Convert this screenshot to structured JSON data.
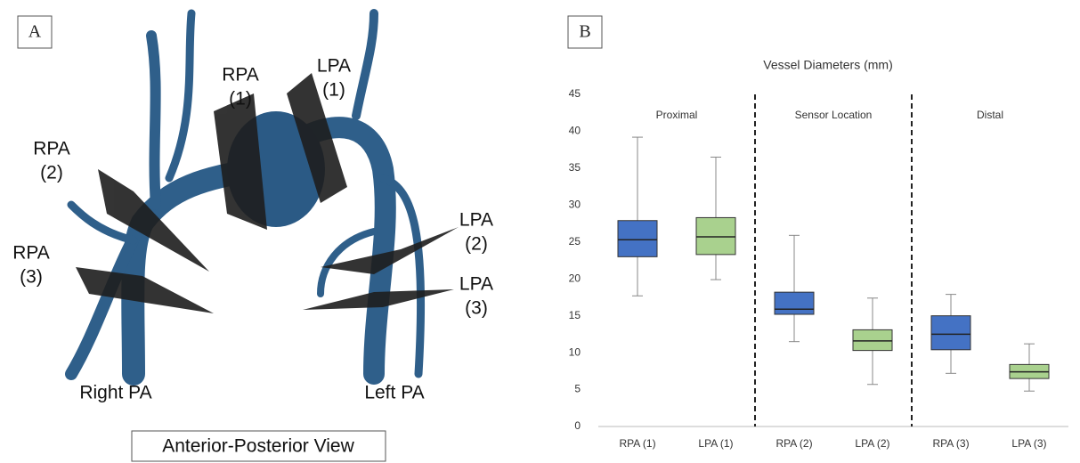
{
  "panel_a": {
    "panel_label": "A",
    "caption": "Anterior-Posterior View",
    "labels": [
      [
        "RPA",
        "(1)"
      ],
      [
        "LPA",
        "(1)"
      ],
      [
        "RPA",
        "(2)"
      ],
      [
        "LPA",
        "(2)"
      ],
      [
        "RPA",
        "(3)"
      ],
      [
        "LPA",
        "(3)"
      ],
      [
        "Right PA"
      ],
      [
        "Left PA"
      ]
    ]
  },
  "chart_data": {
    "type": "box",
    "panel_label": "B",
    "title": "Vessel Diameters (mm)",
    "categories": [
      "RPA (1)",
      "LPA (1)",
      "RPA (2)",
      "LPA (2)",
      "RPA (3)",
      "LPA (3)"
    ],
    "group_labels": [
      "Proximal",
      "Sensor Location",
      "Distal"
    ],
    "colors": [
      "#4472c4",
      "#a9d18e",
      "#4472c4",
      "#a9d18e",
      "#4472c4",
      "#a9d18e"
    ],
    "min": [
      17.7,
      19.9,
      11.5,
      5.7,
      7.2,
      4.8
    ],
    "q1": [
      23.0,
      23.3,
      15.2,
      10.3,
      10.4,
      6.5
    ],
    "median": [
      25.3,
      25.7,
      15.9,
      11.6,
      12.5,
      7.4
    ],
    "q3": [
      27.9,
      28.3,
      18.2,
      13.1,
      15.0,
      8.4
    ],
    "max": [
      39.2,
      36.5,
      25.9,
      17.4,
      17.9,
      11.2
    ],
    "ylim": [
      0,
      45
    ],
    "yticks": [
      0,
      5,
      10,
      15,
      20,
      25,
      30,
      35,
      40,
      45
    ]
  }
}
